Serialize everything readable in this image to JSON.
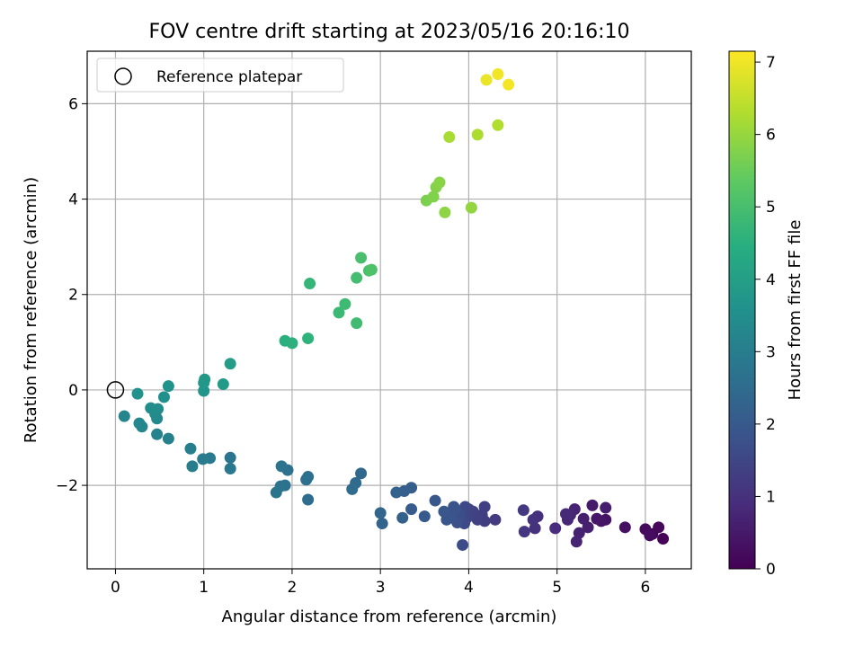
{
  "chart_data": {
    "type": "scatter",
    "title": "FOV centre drift starting at 2023/05/16 20:16:10",
    "xlabel": "Angular distance from reference (arcmin)",
    "ylabel": "Rotation from reference (arcmin)",
    "xlim": [
      -0.32,
      6.52
    ],
    "ylim": [
      -3.75,
      7.1
    ],
    "xticks": [
      "0",
      "1",
      "2",
      "3",
      "4",
      "5",
      "6"
    ],
    "yticks": [
      "−2",
      "0",
      "2",
      "4",
      "6"
    ],
    "grid": true,
    "legend": {
      "position": "top-left",
      "label": "Reference platepar"
    },
    "reference_point": {
      "x": 0,
      "y": 0
    },
    "colorbar": {
      "label": "Hours from first FF file",
      "range": [
        0,
        7.15
      ],
      "ticks": [
        "0",
        "1",
        "2",
        "3",
        "4",
        "5",
        "6",
        "7"
      ],
      "colormap": "viridis"
    },
    "points": [
      {
        "x": 6.2,
        "y": -3.12,
        "t": 0.05
      },
      {
        "x": 6.08,
        "y": -3.02,
        "t": 0.1
      },
      {
        "x": 6.15,
        "y": -2.88,
        "t": 0.15
      },
      {
        "x": 6.0,
        "y": -2.92,
        "t": 0.2
      },
      {
        "x": 6.05,
        "y": -3.05,
        "t": 0.25
      },
      {
        "x": 5.77,
        "y": -2.88,
        "t": 0.3
      },
      {
        "x": 5.55,
        "y": -2.72,
        "t": 0.35
      },
      {
        "x": 5.5,
        "y": -2.75,
        "t": 0.4
      },
      {
        "x": 5.45,
        "y": -2.7,
        "t": 0.45
      },
      {
        "x": 5.4,
        "y": -2.42,
        "t": 0.5
      },
      {
        "x": 5.55,
        "y": -2.47,
        "t": 0.55
      },
      {
        "x": 5.35,
        "y": -2.88,
        "t": 0.6
      },
      {
        "x": 5.3,
        "y": -2.7,
        "t": 0.62
      },
      {
        "x": 5.25,
        "y": -3.0,
        "t": 0.65
      },
      {
        "x": 5.22,
        "y": -3.18,
        "t": 0.7
      },
      {
        "x": 5.2,
        "y": -2.5,
        "t": 0.72
      },
      {
        "x": 5.15,
        "y": -2.62,
        "t": 0.75
      },
      {
        "x": 5.12,
        "y": -2.72,
        "t": 0.8
      },
      {
        "x": 5.1,
        "y": -2.6,
        "t": 0.85
      },
      {
        "x": 4.98,
        "y": -2.9,
        "t": 0.9
      },
      {
        "x": 4.78,
        "y": -2.65,
        "t": 0.95
      },
      {
        "x": 4.75,
        "y": -2.9,
        "t": 1.0
      },
      {
        "x": 4.73,
        "y": -2.72,
        "t": 1.05
      },
      {
        "x": 4.63,
        "y": -2.97,
        "t": 1.1
      },
      {
        "x": 4.62,
        "y": -2.52,
        "t": 1.15
      },
      {
        "x": 4.3,
        "y": -2.72,
        "t": 1.2
      },
      {
        "x": 4.18,
        "y": -2.75,
        "t": 1.25
      },
      {
        "x": 4.15,
        "y": -2.62,
        "t": 1.3
      },
      {
        "x": 4.18,
        "y": -2.45,
        "t": 1.33
      },
      {
        "x": 4.1,
        "y": -2.72,
        "t": 1.36
      },
      {
        "x": 4.05,
        "y": -2.55,
        "t": 1.4
      },
      {
        "x": 4.0,
        "y": -2.5,
        "t": 1.45
      },
      {
        "x": 3.98,
        "y": -2.68,
        "t": 1.5
      },
      {
        "x": 3.96,
        "y": -2.45,
        "t": 1.55
      },
      {
        "x": 3.95,
        "y": -2.8,
        "t": 1.6
      },
      {
        "x": 3.93,
        "y": -3.25,
        "t": 1.65
      },
      {
        "x": 3.9,
        "y": -2.6,
        "t": 1.7
      },
      {
        "x": 3.87,
        "y": -2.78,
        "t": 1.75
      },
      {
        "x": 3.85,
        "y": -2.52,
        "t": 1.8
      },
      {
        "x": 3.83,
        "y": -2.45,
        "t": 1.82
      },
      {
        "x": 3.8,
        "y": -2.65,
        "t": 1.85
      },
      {
        "x": 3.78,
        "y": -2.68,
        "t": 1.88
      },
      {
        "x": 3.75,
        "y": -2.72,
        "t": 1.9
      },
      {
        "x": 3.72,
        "y": -2.55,
        "t": 1.92
      },
      {
        "x": 3.62,
        "y": -2.32,
        "t": 1.95
      },
      {
        "x": 3.5,
        "y": -2.65,
        "t": 2.0
      },
      {
        "x": 3.35,
        "y": -2.5,
        "t": 2.05
      },
      {
        "x": 3.35,
        "y": -2.05,
        "t": 2.1
      },
      {
        "x": 3.27,
        "y": -2.12,
        "t": 2.15
      },
      {
        "x": 3.25,
        "y": -2.68,
        "t": 2.2
      },
      {
        "x": 3.18,
        "y": -2.15,
        "t": 2.25
      },
      {
        "x": 3.02,
        "y": -2.8,
        "t": 2.3
      },
      {
        "x": 3.0,
        "y": -2.58,
        "t": 2.35
      },
      {
        "x": 2.78,
        "y": -1.75,
        "t": 2.4
      },
      {
        "x": 2.72,
        "y": -1.95,
        "t": 2.45
      },
      {
        "x": 2.68,
        "y": -2.08,
        "t": 2.5
      },
      {
        "x": 2.18,
        "y": -2.3,
        "t": 2.55
      },
      {
        "x": 2.18,
        "y": -1.82,
        "t": 2.6
      },
      {
        "x": 2.16,
        "y": -1.88,
        "t": 2.62
      },
      {
        "x": 1.95,
        "y": -1.68,
        "t": 2.65
      },
      {
        "x": 1.92,
        "y": -2.0,
        "t": 2.68
      },
      {
        "x": 1.88,
        "y": -1.6,
        "t": 2.7
      },
      {
        "x": 1.87,
        "y": -2.02,
        "t": 2.72
      },
      {
        "x": 1.82,
        "y": -2.15,
        "t": 2.75
      },
      {
        "x": 1.3,
        "y": -1.42,
        "t": 2.8
      },
      {
        "x": 1.3,
        "y": -1.65,
        "t": 2.85
      },
      {
        "x": 1.07,
        "y": -1.43,
        "t": 2.9
      },
      {
        "x": 0.99,
        "y": -1.45,
        "t": 2.95
      },
      {
        "x": 0.87,
        "y": -1.6,
        "t": 3.0
      },
      {
        "x": 0.85,
        "y": -1.23,
        "t": 3.05
      },
      {
        "x": 0.6,
        "y": -1.02,
        "t": 3.1
      },
      {
        "x": 0.47,
        "y": -0.93,
        "t": 3.15
      },
      {
        "x": 0.1,
        "y": -0.55,
        "t": 3.2
      },
      {
        "x": 0.3,
        "y": -0.77,
        "t": 3.25
      },
      {
        "x": 0.27,
        "y": -0.7,
        "t": 3.3
      },
      {
        "x": 0.47,
        "y": -0.6,
        "t": 3.35
      },
      {
        "x": 0.45,
        "y": -0.5,
        "t": 3.4
      },
      {
        "x": 0.48,
        "y": -0.4,
        "t": 3.45
      },
      {
        "x": 0.4,
        "y": -0.38,
        "t": 3.5
      },
      {
        "x": 0.55,
        "y": -0.15,
        "t": 3.55
      },
      {
        "x": 0.25,
        "y": -0.08,
        "t": 3.6
      },
      {
        "x": 0.6,
        "y": 0.08,
        "t": 3.65
      },
      {
        "x": 1.0,
        "y": -0.02,
        "t": 3.7
      },
      {
        "x": 1.0,
        "y": 0.15,
        "t": 3.75
      },
      {
        "x": 1.01,
        "y": 0.22,
        "t": 3.8
      },
      {
        "x": 1.22,
        "y": 0.12,
        "t": 3.85
      },
      {
        "x": 1.3,
        "y": 0.55,
        "t": 3.9
      },
      {
        "x": 1.92,
        "y": 1.03,
        "t": 4.5
      },
      {
        "x": 2.0,
        "y": 0.98,
        "t": 4.55
      },
      {
        "x": 2.18,
        "y": 1.08,
        "t": 4.6
      },
      {
        "x": 2.2,
        "y": 2.23,
        "t": 4.7
      },
      {
        "x": 2.53,
        "y": 1.62,
        "t": 4.8
      },
      {
        "x": 2.6,
        "y": 1.8,
        "t": 4.85
      },
      {
        "x": 2.73,
        "y": 1.4,
        "t": 4.9
      },
      {
        "x": 2.73,
        "y": 2.35,
        "t": 4.95
      },
      {
        "x": 2.78,
        "y": 2.77,
        "t": 5.0
      },
      {
        "x": 2.87,
        "y": 2.5,
        "t": 5.05
      },
      {
        "x": 2.9,
        "y": 2.52,
        "t": 5.1
      },
      {
        "x": 3.52,
        "y": 3.97,
        "t": 5.7
      },
      {
        "x": 3.6,
        "y": 4.05,
        "t": 5.75
      },
      {
        "x": 3.63,
        "y": 4.25,
        "t": 5.8
      },
      {
        "x": 3.67,
        "y": 4.35,
        "t": 5.85
      },
      {
        "x": 3.73,
        "y": 3.72,
        "t": 5.9
      },
      {
        "x": 4.03,
        "y": 3.82,
        "t": 5.95
      },
      {
        "x": 3.78,
        "y": 5.3,
        "t": 6.2
      },
      {
        "x": 4.1,
        "y": 5.35,
        "t": 6.25
      },
      {
        "x": 4.33,
        "y": 5.55,
        "t": 6.3
      },
      {
        "x": 4.2,
        "y": 6.5,
        "t": 6.95
      },
      {
        "x": 4.33,
        "y": 6.62,
        "t": 7.0
      },
      {
        "x": 4.45,
        "y": 6.4,
        "t": 7.05
      }
    ]
  }
}
